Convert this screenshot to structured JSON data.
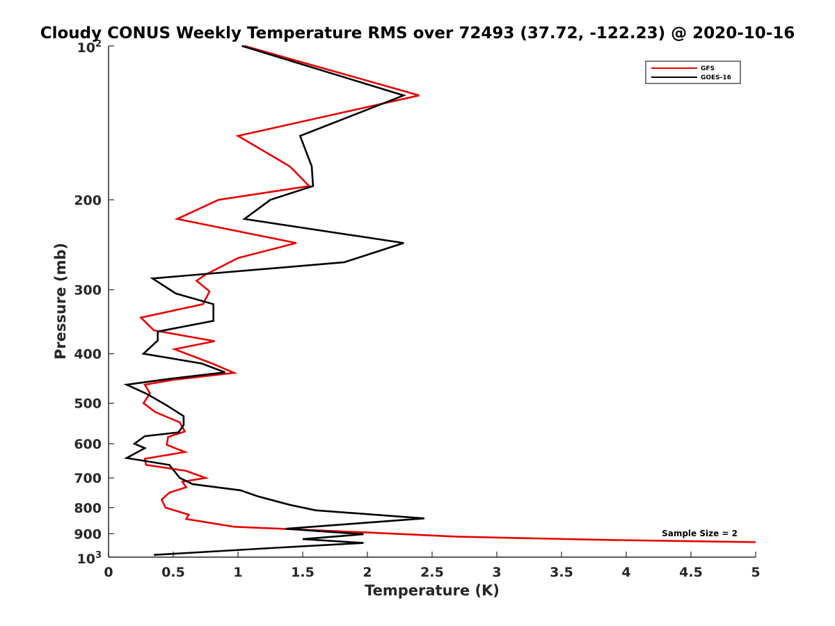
{
  "chart_data": {
    "type": "line",
    "title": "Cloudy CONUS Weekly Temperature RMS over 72493 (37.72, -122.23) @ 2020-10-16",
    "xlabel": "Temperature (K)",
    "ylabel": "Pressure (mb)",
    "xlim": [
      0,
      5
    ],
    "ylim": [
      1000,
      100
    ],
    "yscale": "log",
    "y_reversed": true,
    "grid": false,
    "legend_position": "top-right",
    "annotation": "Sample Size = 2",
    "x_ticks": [
      "0",
      "0.5",
      "1",
      "1.5",
      "2",
      "2.5",
      "3",
      "3.5",
      "4",
      "4.5",
      "5"
    ],
    "y_ticks": [
      {
        "value": 100,
        "base": "10",
        "exp": "2"
      },
      {
        "value": 200,
        "label": "200"
      },
      {
        "value": 300,
        "label": "300"
      },
      {
        "value": 400,
        "label": "400"
      },
      {
        "value": 500,
        "label": "500"
      },
      {
        "value": 600,
        "label": "600"
      },
      {
        "value": 700,
        "label": "700"
      },
      {
        "value": 800,
        "label": "800"
      },
      {
        "value": 900,
        "label": "900"
      },
      {
        "value": 1000,
        "base": "10",
        "exp": "3"
      }
    ],
    "series": [
      {
        "name": "GFS",
        "color": "#e60000",
        "points": [
          [
            1.05,
            100
          ],
          [
            2.4,
            125
          ],
          [
            1.0,
            150
          ],
          [
            1.4,
            172
          ],
          [
            1.55,
            188
          ],
          [
            0.85,
            200
          ],
          [
            0.53,
            218
          ],
          [
            1.45,
            243
          ],
          [
            1.0,
            260
          ],
          [
            0.75,
            280
          ],
          [
            0.68,
            288
          ],
          [
            0.78,
            302
          ],
          [
            0.73,
            320
          ],
          [
            0.25,
            340
          ],
          [
            0.35,
            360
          ],
          [
            0.82,
            378
          ],
          [
            0.51,
            392
          ],
          [
            0.8,
            418
          ],
          [
            0.97,
            436
          ],
          [
            0.5,
            450
          ],
          [
            0.28,
            460
          ],
          [
            0.32,
            478
          ],
          [
            0.27,
            500
          ],
          [
            0.36,
            520
          ],
          [
            0.55,
            545
          ],
          [
            0.59,
            568
          ],
          [
            0.46,
            582
          ],
          [
            0.45,
            603
          ],
          [
            0.59,
            623
          ],
          [
            0.28,
            642
          ],
          [
            0.29,
            660
          ],
          [
            0.6,
            678
          ],
          [
            0.75,
            700
          ],
          [
            0.57,
            712
          ],
          [
            0.6,
            730
          ],
          [
            0.47,
            748
          ],
          [
            0.41,
            772
          ],
          [
            0.44,
            800
          ],
          [
            0.62,
            826
          ],
          [
            0.6,
            842
          ],
          [
            0.97,
            872
          ],
          [
            2.0,
            895
          ],
          [
            2.7,
            912
          ],
          [
            3.8,
            925
          ],
          [
            5.0,
            935
          ]
        ]
      },
      {
        "name": "GOES-16",
        "color": "#000000",
        "points": [
          [
            1.03,
            100
          ],
          [
            2.28,
            125
          ],
          [
            1.48,
            150
          ],
          [
            1.57,
            172
          ],
          [
            1.58,
            188
          ],
          [
            1.25,
            200
          ],
          [
            1.05,
            218
          ],
          [
            2.28,
            243
          ],
          [
            1.82,
            265
          ],
          [
            0.34,
            285
          ],
          [
            0.52,
            305
          ],
          [
            0.81,
            320
          ],
          [
            0.81,
            345
          ],
          [
            0.38,
            362
          ],
          [
            0.38,
            377
          ],
          [
            0.27,
            400
          ],
          [
            0.72,
            418
          ],
          [
            0.9,
            435
          ],
          [
            0.47,
            448
          ],
          [
            0.14,
            460
          ],
          [
            0.3,
            480
          ],
          [
            0.45,
            505
          ],
          [
            0.58,
            530
          ],
          [
            0.58,
            552
          ],
          [
            0.54,
            570
          ],
          [
            0.28,
            580
          ],
          [
            0.2,
            600
          ],
          [
            0.28,
            612
          ],
          [
            0.23,
            622
          ],
          [
            0.14,
            640
          ],
          [
            0.47,
            660
          ],
          [
            0.55,
            700
          ],
          [
            0.65,
            720
          ],
          [
            1.02,
            740
          ],
          [
            1.15,
            760
          ],
          [
            1.4,
            790
          ],
          [
            1.6,
            810
          ],
          [
            2.44,
            840
          ],
          [
            1.95,
            858
          ],
          [
            1.37,
            880
          ],
          [
            1.97,
            902
          ],
          [
            1.5,
            922
          ],
          [
            1.97,
            938
          ],
          [
            1.25,
            960
          ],
          [
            0.35,
            990
          ]
        ]
      }
    ]
  }
}
